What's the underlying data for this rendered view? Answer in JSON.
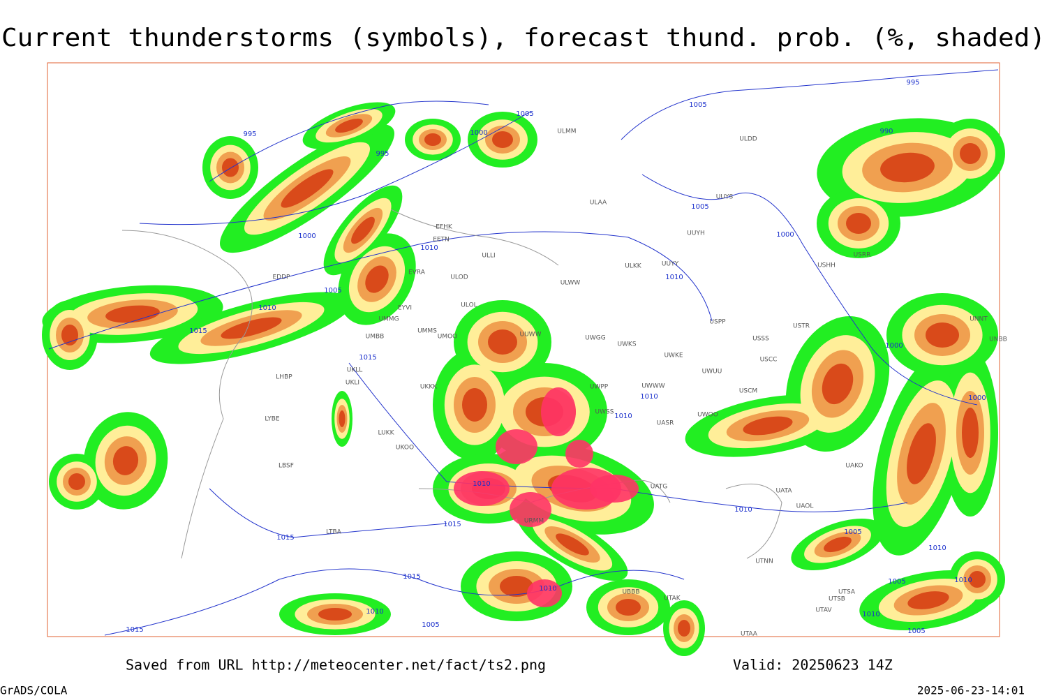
{
  "header": {
    "title": "Current thunderstorms (symbols), forecast thund. prob. (%, shaded)"
  },
  "footer": {
    "source": "Saved from URL http://meteocenter.net/fact/ts2.png",
    "valid": "Valid: 20250623 14Z",
    "credit": "GrADS/COLA",
    "timestamp": "2025-06-23-14:01"
  },
  "map": {
    "isobar_labels": [
      "995",
      "995",
      "1005",
      "1000",
      "1005",
      "995",
      "990",
      "1000",
      "1010",
      "1005",
      "1010",
      "1015",
      "1015",
      "1005",
      "1000",
      "1010",
      "1010",
      "1010",
      "1000",
      "1000",
      "1010",
      "1015",
      "1015",
      "1015",
      "1010",
      "1005",
      "1015",
      "1010",
      "1005",
      "1010",
      "1010",
      "1005",
      "1010",
      "1005",
      "1010"
    ],
    "stations": [
      "ULMM",
      "ULDD",
      "ULAA",
      "UUYS",
      "UUYH",
      "EFHK",
      "EETN",
      "ULLI",
      "EVRA",
      "ULOD",
      "ULKK",
      "UUYY",
      "EDDP",
      "ULWW",
      "EYVI",
      "ULOL",
      "UMMG",
      "UMMS",
      "UMOO",
      "UMBB",
      "UUWW",
      "UWGG",
      "UWKS",
      "USPP",
      "USSS",
      "USTR",
      "UWKE",
      "UWUU",
      "USCC",
      "UKLL",
      "UKLI",
      "LHBP",
      "UKKK",
      "UWPP",
      "UWWW",
      "USCM",
      "LYBE",
      "LBSF",
      "LUKK",
      "UKOO",
      "LTBA",
      "URMM",
      "UBBB",
      "UATG",
      "UATA",
      "UAOL",
      "UAKO",
      "UTNN",
      "UTSA",
      "UTSB",
      "UTAV",
      "UTAA",
      "UTAK",
      "USHH",
      "UNNT",
      "UNBB",
      "USRR",
      "UWOO",
      "UASR",
      "UWSS"
    ]
  }
}
